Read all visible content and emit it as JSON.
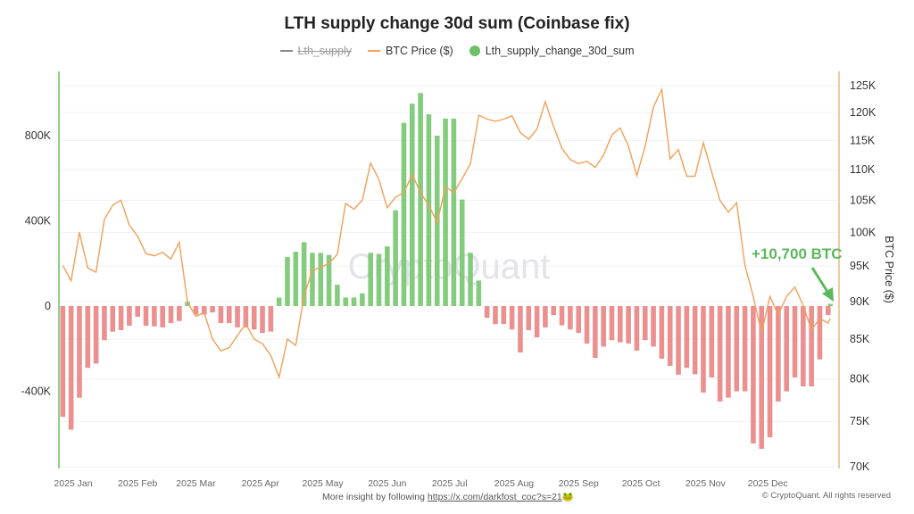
{
  "title": "LTH supply change 30d sum (Coinbase fix)",
  "legend": [
    {
      "label": "Lth_supply",
      "color": "#888888",
      "hidden": true
    },
    {
      "label": "BTC Price ($)",
      "color": "#f0a05a"
    },
    {
      "label": "Lth_supply_change_30d_sum",
      "color": "#6cc167"
    }
  ],
  "watermark": "CryptoQuant",
  "annotation": {
    "text": "+10,700 BTC",
    "color": "#5cb85c"
  },
  "footer": {
    "insight_prefix": "More insight by following ",
    "link": "https://x.com/darkfost_coc?s=21",
    "emoji": "🐸",
    "copyright": "© CryptoQuant. All rights reserved"
  },
  "chart_data": {
    "type": "bar+line",
    "title": "LTH supply change 30d sum (Coinbase fix)",
    "xlabel": "",
    "ylabel_left": "",
    "ylabel_right": "BTC Price ($)",
    "x_tick_labels": [
      "2025 Jan",
      "2025 Feb",
      "2025 Mar",
      "2025 Apr",
      "2025 May",
      "2025 Jun",
      "2025 Jul",
      "2025 Aug",
      "2025 Sep",
      "2025 Oct",
      "2025 Nov",
      "2025 Dec"
    ],
    "y_left_ticks": [
      {
        "value": 800000,
        "label": "800K"
      },
      {
        "value": 400000,
        "label": "400K"
      },
      {
        "value": 0,
        "label": "0"
      },
      {
        "value": -400000,
        "label": "-400K"
      }
    ],
    "y_left_range": [
      -760000,
      1060000
    ],
    "y_right_ticks": [
      {
        "value": 125000,
        "label": "125K"
      },
      {
        "value": 120000,
        "label": "120K"
      },
      {
        "value": 115000,
        "label": "115K"
      },
      {
        "value": 110000,
        "label": "110K"
      },
      {
        "value": 105000,
        "label": "105K"
      },
      {
        "value": 100000,
        "label": "100K"
      },
      {
        "value": 95000,
        "label": "95K"
      },
      {
        "value": 90000,
        "label": "90K"
      },
      {
        "value": 85000,
        "label": "85K"
      },
      {
        "value": 80000,
        "label": "80K"
      },
      {
        "value": 75000,
        "label": "75K"
      },
      {
        "value": 70000,
        "label": "70K"
      }
    ],
    "y_right_range": [
      70000,
      127000
    ],
    "y_right_scale": "log",
    "grid": true,
    "legend_position": "top",
    "colors": {
      "positive": "#77c66f",
      "negative": "#e98383",
      "price": "#f0a05a"
    },
    "x": [
      "2024-12-27",
      "2024-12-31",
      "2025-01-04",
      "2025-01-08",
      "2025-01-12",
      "2025-01-16",
      "2025-01-20",
      "2025-01-24",
      "2025-01-28",
      "2025-02-01",
      "2025-02-05",
      "2025-02-09",
      "2025-02-13",
      "2025-02-17",
      "2025-02-21",
      "2025-02-25",
      "2025-03-01",
      "2025-03-05",
      "2025-03-09",
      "2025-03-13",
      "2025-03-17",
      "2025-03-21",
      "2025-03-25",
      "2025-03-29",
      "2025-04-02",
      "2025-04-06",
      "2025-04-10",
      "2025-04-14",
      "2025-04-18",
      "2025-04-22",
      "2025-04-26",
      "2025-04-30",
      "2025-05-04",
      "2025-05-08",
      "2025-05-12",
      "2025-05-16",
      "2025-05-20",
      "2025-05-24",
      "2025-05-28",
      "2025-06-01",
      "2025-06-05",
      "2025-06-09",
      "2025-06-13",
      "2025-06-17",
      "2025-06-21",
      "2025-06-25",
      "2025-06-29",
      "2025-07-03",
      "2025-07-07",
      "2025-07-11",
      "2025-07-15",
      "2025-07-19",
      "2025-07-23",
      "2025-07-27",
      "2025-07-31",
      "2025-08-04",
      "2025-08-08",
      "2025-08-12",
      "2025-08-16",
      "2025-08-20",
      "2025-08-24",
      "2025-08-28",
      "2025-09-01",
      "2025-09-05",
      "2025-09-09",
      "2025-09-13",
      "2025-09-17",
      "2025-09-21",
      "2025-09-25",
      "2025-09-29",
      "2025-10-03",
      "2025-10-07",
      "2025-10-11",
      "2025-10-15",
      "2025-10-19",
      "2025-10-23",
      "2025-10-27",
      "2025-10-31",
      "2025-11-04",
      "2025-11-08",
      "2025-11-12",
      "2025-11-16",
      "2025-11-20",
      "2025-11-24",
      "2025-11-28",
      "2025-12-02",
      "2025-12-06",
      "2025-12-10",
      "2025-12-14",
      "2025-12-18",
      "2025-12-22",
      "2025-12-26",
      "2025-12-30",
      "2025-12-31"
    ],
    "series": [
      {
        "name": "Lth_supply_change_30d_sum",
        "type": "bar",
        "axis": "left",
        "values": [
          -520000,
          -580000,
          -430000,
          -290000,
          -270000,
          -160000,
          -120000,
          -113000,
          -92000,
          -50000,
          -92000,
          -95000,
          -100000,
          -80000,
          -70000,
          20000,
          -40000,
          -40000,
          -30000,
          -80000,
          -80000,
          -100000,
          -100000,
          -110000,
          -126000,
          -120000,
          40000,
          230000,
          255000,
          300000,
          250000,
          250000,
          240000,
          100000,
          40000,
          40000,
          60000,
          250000,
          245000,
          280000,
          450000,
          860000,
          950000,
          1000000,
          900000,
          800000,
          880000,
          880000,
          500000,
          250000,
          120000,
          -55000,
          -85000,
          -84000,
          -110000,
          -218000,
          -113000,
          -147000,
          -100000,
          -42000,
          -90000,
          -110000,
          -126000,
          -176000,
          -243000,
          -190000,
          -160000,
          -170000,
          -175000,
          -209000,
          -160000,
          -190000,
          -247000,
          -281000,
          -322000,
          -290000,
          -320000,
          -406000,
          -335000,
          -448000,
          -430000,
          -400000,
          -400000,
          -645000,
          -670000,
          -616000,
          -448000,
          -400000,
          -335000,
          -377000,
          -377000,
          -250000,
          -42000,
          10700
        ]
      },
      {
        "name": "BTC Price ($)",
        "type": "line",
        "axis": "right",
        "values": [
          95100,
          92900,
          100000,
          94700,
          94100,
          102000,
          104200,
          105000,
          101100,
          99400,
          96800,
          96500,
          97000,
          96000,
          98500,
          89800,
          88000,
          88500,
          85000,
          83500,
          83900,
          85500,
          87000,
          85000,
          84400,
          82900,
          80200,
          85000,
          84200,
          90700,
          94400,
          94800,
          95400,
          96700,
          104500,
          103600,
          105000,
          111100,
          108400,
          103800,
          105500,
          106200,
          109200,
          106200,
          104200,
          101500,
          107200,
          106200,
          108500,
          111000,
          119500,
          118800,
          118400,
          118800,
          119400,
          116400,
          115200,
          117000,
          122000,
          117500,
          113600,
          111700,
          111000,
          111400,
          110400,
          112400,
          116000,
          117200,
          114000,
          109000,
          114000,
          121000,
          124300,
          111800,
          113400,
          108900,
          108900,
          114600,
          109600,
          105000,
          103100,
          104600,
          95100,
          90700,
          85800,
          90700,
          88200,
          90700,
          92000,
          89500,
          86200,
          87700,
          87100,
          87700
        ]
      }
    ]
  }
}
